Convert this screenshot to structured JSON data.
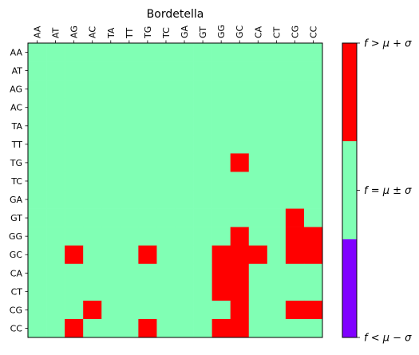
{
  "chart_data": {
    "type": "heatmap",
    "title": "Bordetella",
    "xlabel": "",
    "ylabel": "",
    "x_labels": [
      "AA",
      "AT",
      "AG",
      "AC",
      "TA",
      "TT",
      "TG",
      "TC",
      "GA",
      "GT",
      "GG",
      "GC",
      "CA",
      "CT",
      "CG",
      "CC"
    ],
    "y_labels": [
      "AA",
      "AT",
      "AG",
      "AC",
      "TA",
      "TT",
      "TG",
      "TC",
      "GA",
      "GT",
      "GG",
      "GC",
      "CA",
      "CT",
      "CG",
      "CC"
    ],
    "value_scale": [
      -1,
      1
    ],
    "values": [
      [
        0,
        0,
        0,
        0,
        0,
        0,
        0,
        0,
        0,
        0,
        0,
        0,
        0,
        0,
        0,
        0
      ],
      [
        0,
        0,
        0,
        0,
        0,
        0,
        0,
        0,
        0,
        0,
        0,
        0,
        0,
        0,
        0,
        0
      ],
      [
        0,
        0,
        0,
        0,
        0,
        0,
        0,
        0,
        0,
        0,
        0,
        0,
        0,
        0,
        0,
        0
      ],
      [
        0,
        0,
        0,
        0,
        0,
        0,
        0,
        0,
        0,
        0,
        0,
        0,
        0,
        0,
        0,
        0
      ],
      [
        0,
        0,
        0,
        0,
        0,
        0,
        0,
        0,
        0,
        0,
        0,
        0,
        0,
        0,
        0,
        0
      ],
      [
        0,
        0,
        0,
        0,
        0,
        0,
        0,
        0,
        0,
        0,
        0,
        0,
        0,
        0,
        0,
        0
      ],
      [
        0,
        0,
        0,
        0,
        0,
        0,
        0,
        0,
        0,
        0,
        0,
        1,
        0,
        0,
        0,
        0
      ],
      [
        0,
        0,
        0,
        0,
        0,
        0,
        0,
        0,
        0,
        0,
        0,
        0,
        0,
        0,
        0,
        0
      ],
      [
        0,
        0,
        0,
        0,
        0,
        0,
        0,
        0,
        0,
        0,
        0,
        0,
        0,
        0,
        0,
        0
      ],
      [
        0,
        0,
        0,
        0,
        0,
        0,
        0,
        0,
        0,
        0,
        0,
        0,
        0,
        0,
        1,
        0
      ],
      [
        0,
        0,
        0,
        0,
        0,
        0,
        0,
        0,
        0,
        0,
        0,
        1,
        0,
        0,
        1,
        1
      ],
      [
        0,
        0,
        1,
        0,
        0,
        0,
        1,
        0,
        0,
        0,
        1,
        1,
        1,
        0,
        1,
        1
      ],
      [
        0,
        0,
        0,
        0,
        0,
        0,
        0,
        0,
        0,
        0,
        1,
        1,
        0,
        0,
        0,
        0
      ],
      [
        0,
        0,
        0,
        0,
        0,
        0,
        0,
        0,
        0,
        0,
        1,
        1,
        0,
        0,
        0,
        0
      ],
      [
        0,
        0,
        0,
        1,
        0,
        0,
        0,
        0,
        0,
        0,
        0,
        1,
        0,
        0,
        1,
        1
      ],
      [
        0,
        0,
        1,
        0,
        0,
        0,
        1,
        0,
        0,
        0,
        1,
        1,
        0,
        0,
        0,
        0
      ]
    ],
    "colorbar": {
      "levels": [
        {
          "value": -1,
          "label": "f < μ − σ",
          "color": "#8000ff"
        },
        {
          "value": 0,
          "label": "f = μ ± σ",
          "color": "#80ffb4"
        },
        {
          "value": 1,
          "label": "f > μ + σ",
          "color": "#ff0000"
        }
      ]
    },
    "grid": false
  }
}
